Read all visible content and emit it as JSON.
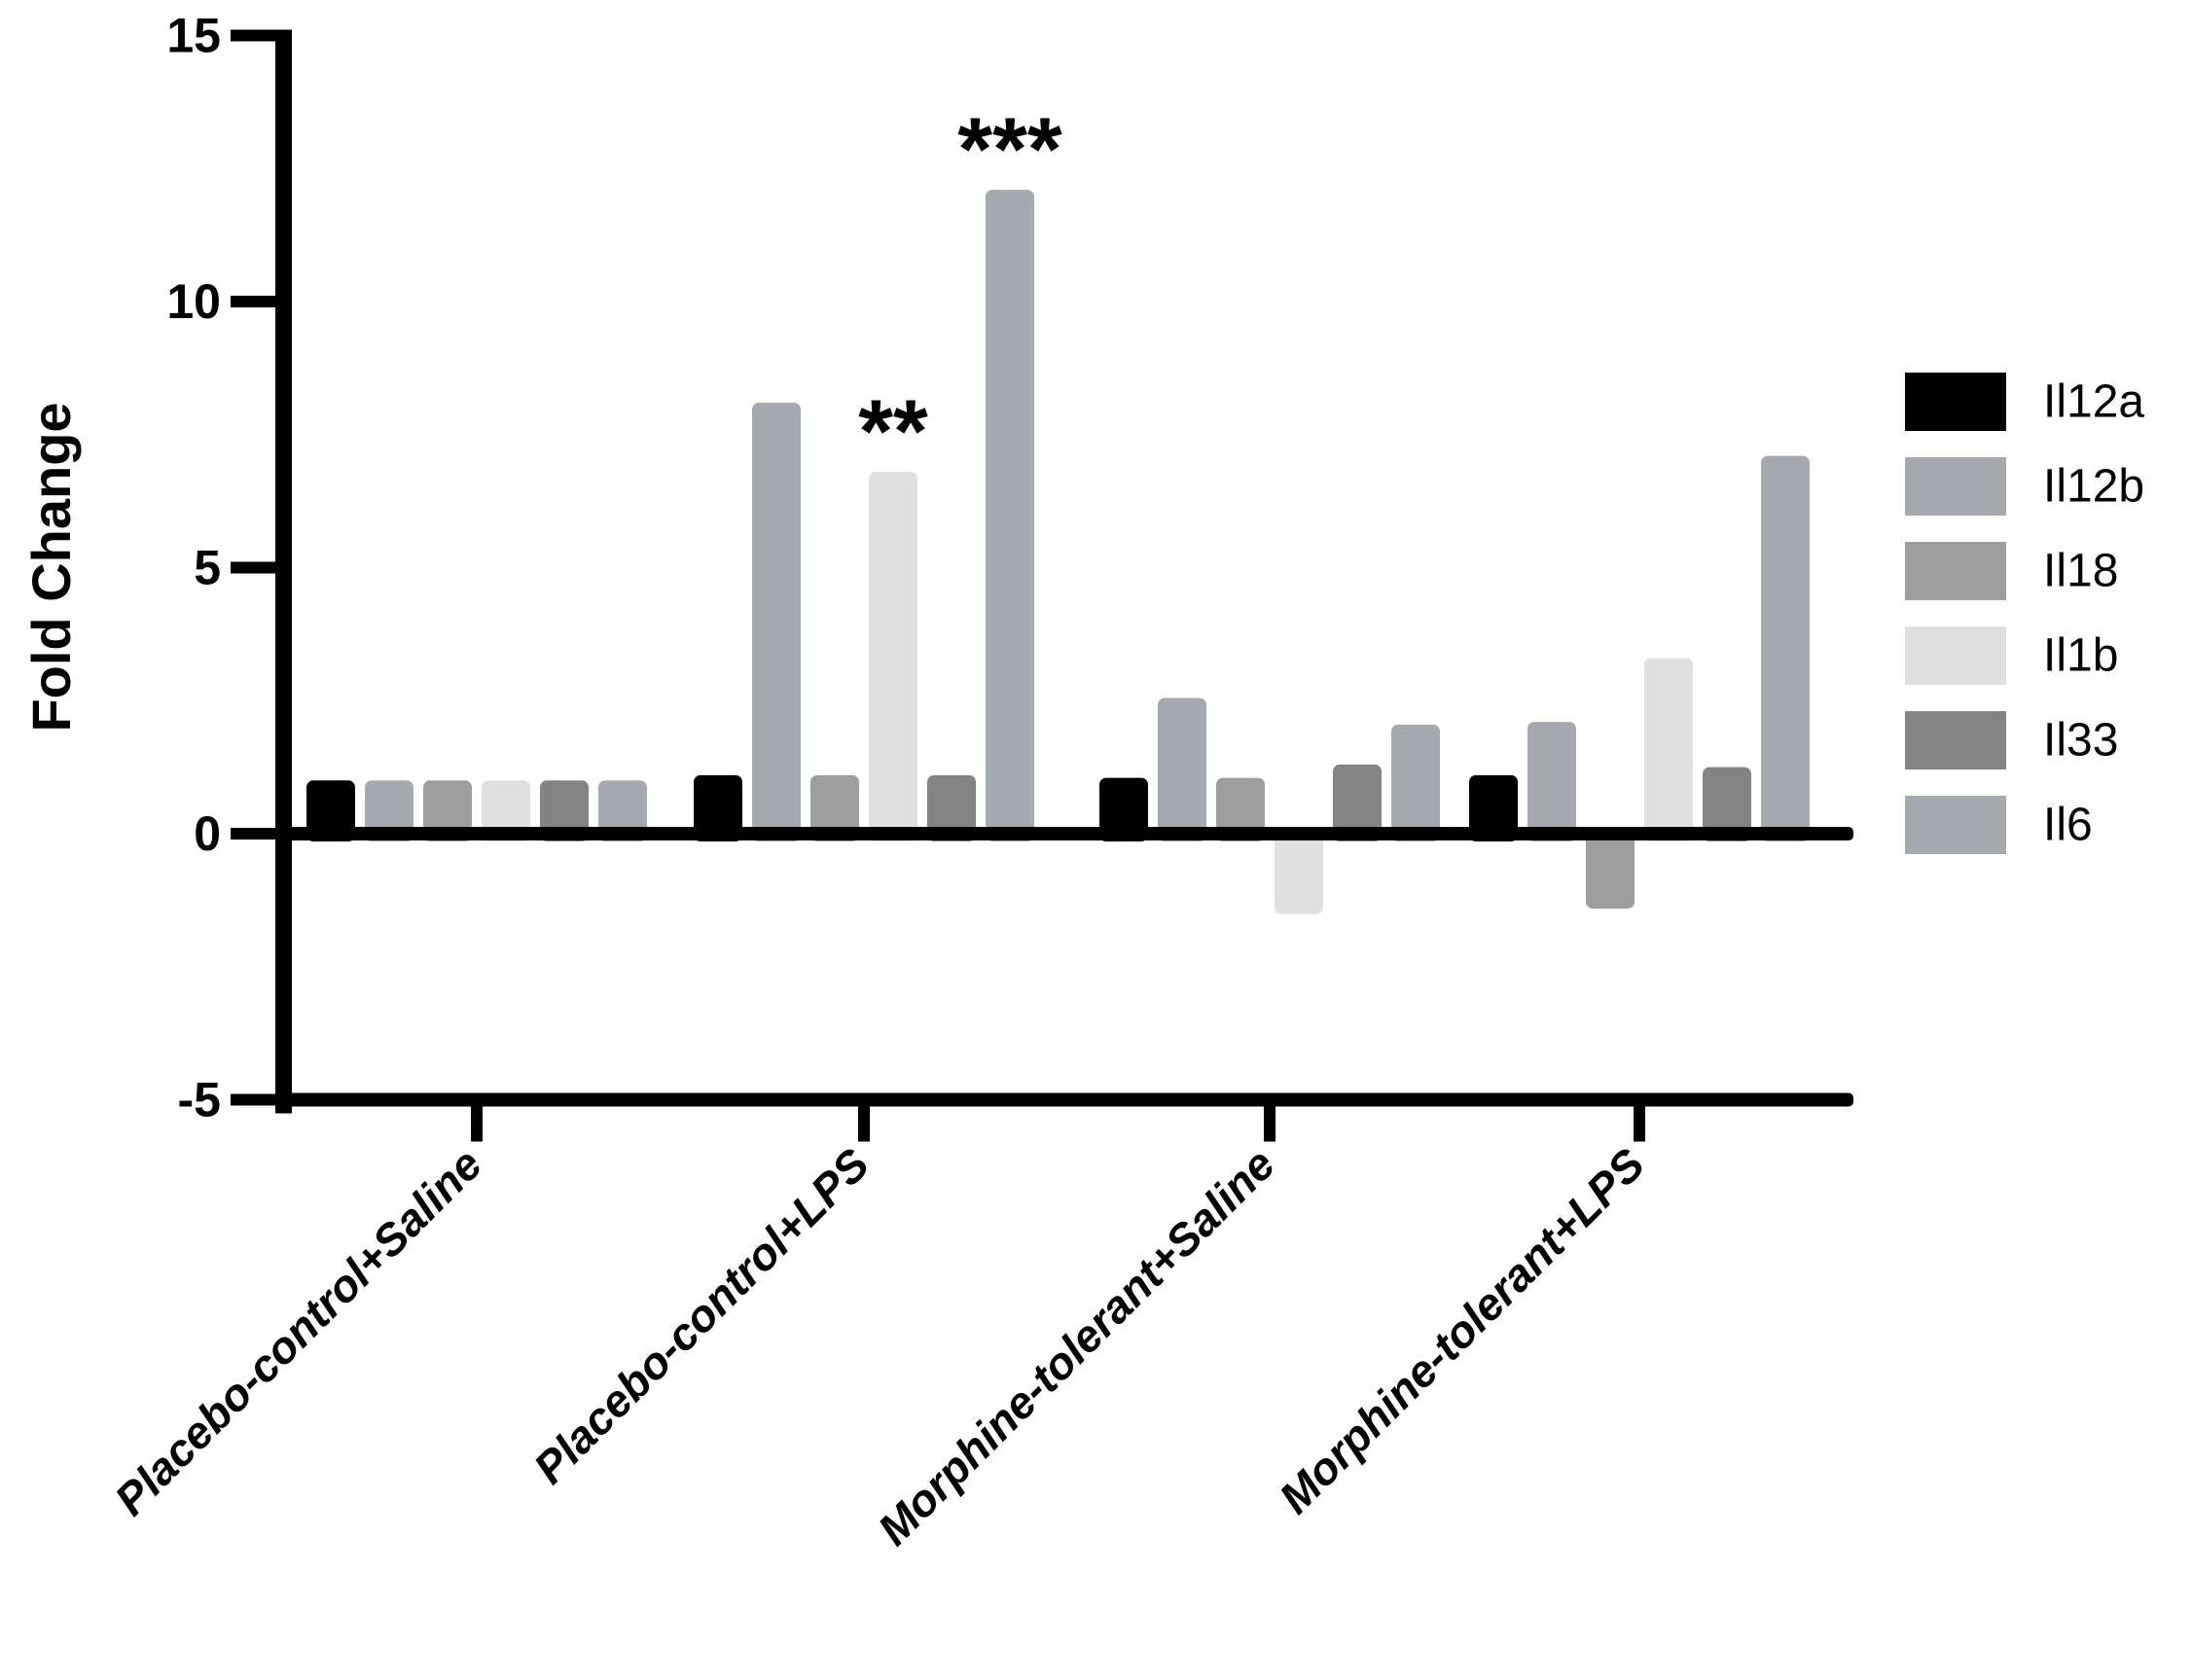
{
  "chart_data": {
    "type": "bar",
    "title": "",
    "ylabel": "Fold Change",
    "xlabel": "",
    "ylim": [
      -5,
      15
    ],
    "yticks": [
      15,
      10,
      5,
      0,
      -5
    ],
    "grid": false,
    "legend_position": "right",
    "categories": [
      "Placebo-control+Saline",
      "Placebo-control+LPS",
      "Morphine-tolerant+Saline",
      "Morphine-tolerant+LPS"
    ],
    "series": [
      {
        "name": "Il12a",
        "color": "#000000",
        "values": [
          1.0,
          1.1,
          1.05,
          1.1
        ]
      },
      {
        "name": "Il12b",
        "color": "#a6a9ae",
        "values": [
          1.0,
          8.1,
          2.55,
          2.1
        ]
      },
      {
        "name": "Il18",
        "color": "#9e9e9e",
        "values": [
          1.0,
          1.1,
          1.05,
          -1.3
        ]
      },
      {
        "name": "Il1b",
        "color": "#e0e0e0",
        "values": [
          1.0,
          6.8,
          -1.4,
          3.3
        ]
      },
      {
        "name": "Il33",
        "color": "#848484",
        "values": [
          1.0,
          1.1,
          1.3,
          1.25
        ]
      },
      {
        "name": "Il6",
        "color": "#a6a9ae",
        "values": [
          1.0,
          12.1,
          2.05,
          7.1
        ]
      }
    ],
    "annotations": [
      {
        "text": "**",
        "category_index": 1,
        "series_index": 3
      },
      {
        "text": "***",
        "category_index": 1,
        "series_index": 5
      }
    ]
  }
}
